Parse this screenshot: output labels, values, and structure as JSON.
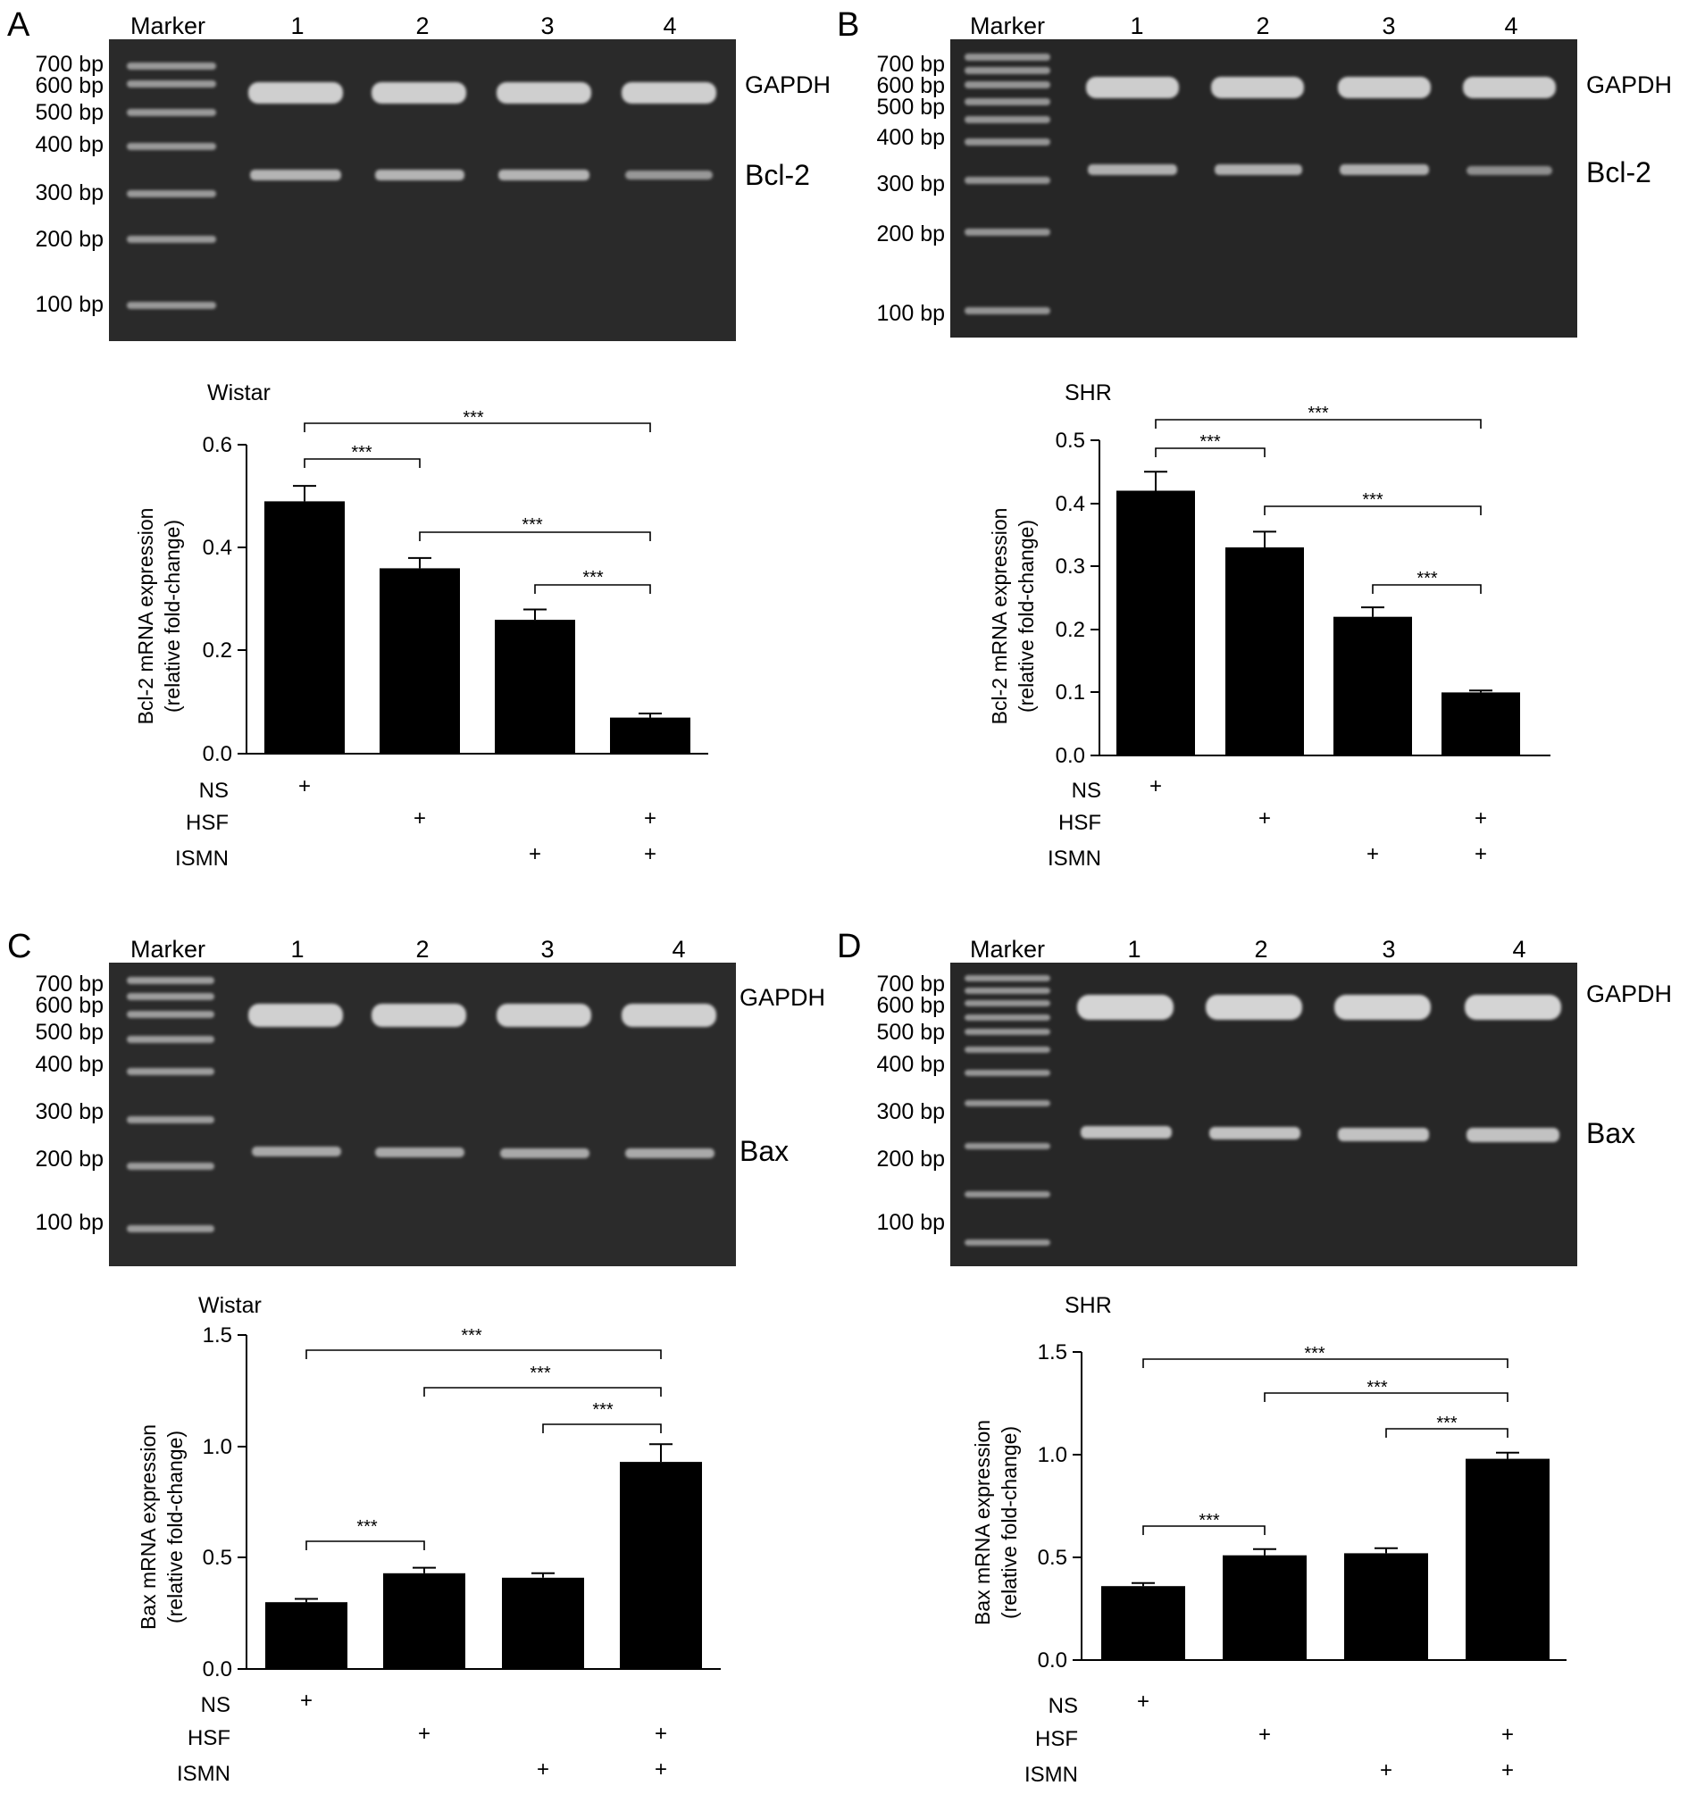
{
  "marker_label": "Marker",
  "lanes": [
    "1",
    "2",
    "3",
    "4"
  ],
  "ladder": [
    "700 bp",
    "600 bp",
    "500 bp",
    "400 bp",
    "300 bp",
    "200 bp",
    "100 bp"
  ],
  "treatments": [
    "NS",
    "HSF",
    "ISMN"
  ],
  "plus": "+",
  "panels": [
    {
      "letter": "A",
      "bands": [
        "GAPDH",
        "Bcl-2"
      ],
      "chart": {
        "title": "Wistar",
        "ylabel1": "Bcl-2 mRNA expression",
        "ylabel2": "(relative fold-change)",
        "ticks": [
          "0.0",
          "0.2",
          "0.4",
          "0.6"
        ]
      },
      "brackets": [
        {
          "label": "***"
        },
        {
          "label": "***"
        },
        {
          "label": "***"
        },
        {
          "label": "***"
        }
      ]
    },
    {
      "letter": "B",
      "bands": [
        "GAPDH",
        "Bcl-2"
      ],
      "chart": {
        "title": "SHR",
        "ylabel1": "Bcl-2 mRNA expression",
        "ylabel2": "(relative fold-change)",
        "ticks": [
          "0.0",
          "0.1",
          "0.2",
          "0.3",
          "0.4",
          "0.5"
        ]
      },
      "brackets": [
        {
          "label": "***"
        },
        {
          "label": "***"
        },
        {
          "label": "***"
        },
        {
          "label": "***"
        }
      ]
    },
    {
      "letter": "C",
      "bands": [
        "GAPDH",
        "Bax"
      ],
      "chart": {
        "title": "Wistar",
        "ylabel1": "Bax mRNA expression",
        "ylabel2": "(relative fold-change)",
        "ticks": [
          "0.0",
          "0.5",
          "1.0",
          "1.5"
        ]
      },
      "brackets": [
        {
          "label": "***"
        },
        {
          "label": "***"
        },
        {
          "label": "***"
        },
        {
          "label": "***"
        }
      ]
    },
    {
      "letter": "D",
      "bands": [
        "GAPDH",
        "Bax"
      ],
      "chart": {
        "title": "SHR",
        "ylabel1": "Bax mRNA expression",
        "ylabel2": "(relative fold-change)",
        "ticks": [
          "0.0",
          "0.5",
          "1.0",
          "1.5"
        ]
      },
      "brackets": [
        {
          "label": "***"
        },
        {
          "label": "***"
        },
        {
          "label": "***"
        },
        {
          "label": "***"
        }
      ]
    }
  ],
  "chart_data": [
    {
      "type": "bar",
      "panel": "A",
      "title": "Wistar",
      "ylabel": "Bcl-2 mRNA expression (relative fold-change)",
      "ylim": [
        0,
        0.6
      ],
      "groups": [
        {
          "NS": true,
          "HSF": false,
          "ISMN": false
        },
        {
          "NS": false,
          "HSF": true,
          "ISMN": false
        },
        {
          "NS": false,
          "HSF": false,
          "ISMN": true
        },
        {
          "NS": false,
          "HSF": true,
          "ISMN": true
        }
      ],
      "values": [
        0.49,
        0.36,
        0.26,
        0.07
      ],
      "errors": [
        0.03,
        0.02,
        0.02,
        0.008
      ],
      "comparisons": [
        [
          1,
          4,
          "***"
        ],
        [
          1,
          2,
          "***"
        ],
        [
          2,
          4,
          "***"
        ],
        [
          3,
          4,
          "***"
        ]
      ]
    },
    {
      "type": "bar",
      "panel": "B",
      "title": "SHR",
      "ylabel": "Bcl-2 mRNA expression (relative fold-change)",
      "ylim": [
        0,
        0.5
      ],
      "groups": [
        {
          "NS": true,
          "HSF": false,
          "ISMN": false
        },
        {
          "NS": false,
          "HSF": true,
          "ISMN": false
        },
        {
          "NS": false,
          "HSF": false,
          "ISMN": true
        },
        {
          "NS": false,
          "HSF": true,
          "ISMN": true
        }
      ],
      "values": [
        0.42,
        0.33,
        0.22,
        0.1
      ],
      "errors": [
        0.03,
        0.025,
        0.015,
        0.003
      ],
      "comparisons": [
        [
          1,
          4,
          "***"
        ],
        [
          1,
          2,
          "***"
        ],
        [
          2,
          4,
          "***"
        ],
        [
          3,
          4,
          "***"
        ]
      ]
    },
    {
      "type": "bar",
      "panel": "C",
      "title": "Wistar",
      "ylabel": "Bax mRNA expression (relative fold-change)",
      "ylim": [
        0,
        1.5
      ],
      "groups": [
        {
          "NS": true,
          "HSF": false,
          "ISMN": false
        },
        {
          "NS": false,
          "HSF": true,
          "ISMN": false
        },
        {
          "NS": false,
          "HSF": false,
          "ISMN": true
        },
        {
          "NS": false,
          "HSF": true,
          "ISMN": true
        }
      ],
      "values": [
        0.3,
        0.43,
        0.41,
        0.93
      ],
      "errors": [
        0.015,
        0.025,
        0.02,
        0.08
      ],
      "comparisons": [
        [
          1,
          4,
          "***"
        ],
        [
          2,
          4,
          "***"
        ],
        [
          3,
          4,
          "***"
        ],
        [
          1,
          2,
          "***"
        ]
      ]
    },
    {
      "type": "bar",
      "panel": "D",
      "title": "SHR",
      "ylabel": "Bax mRNA expression (relative fold-change)",
      "ylim": [
        0,
        1.5
      ],
      "groups": [
        {
          "NS": true,
          "HSF": false,
          "ISMN": false
        },
        {
          "NS": false,
          "HSF": true,
          "ISMN": false
        },
        {
          "NS": false,
          "HSF": false,
          "ISMN": true
        },
        {
          "NS": false,
          "HSF": true,
          "ISMN": true
        }
      ],
      "values": [
        0.36,
        0.51,
        0.52,
        0.98
      ],
      "errors": [
        0.015,
        0.03,
        0.025,
        0.03
      ],
      "comparisons": [
        [
          1,
          4,
          "***"
        ],
        [
          2,
          4,
          "***"
        ],
        [
          3,
          4,
          "***"
        ],
        [
          1,
          2,
          "***"
        ]
      ]
    }
  ]
}
